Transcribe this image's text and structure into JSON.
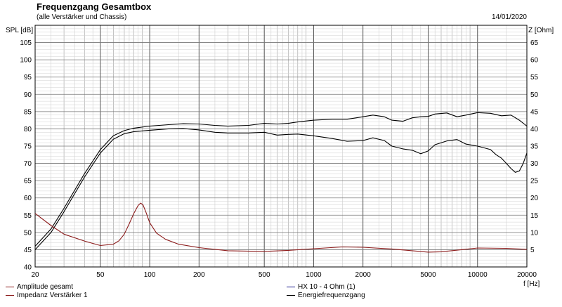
{
  "header": {
    "title": "Frequenzgang Gesamtbox",
    "subtitle": "(alle Verstärker und Chassis)",
    "date": "14/01/2020"
  },
  "legend": [
    {
      "label": "Amplitude gesamt",
      "color": "#8b1a1a"
    },
    {
      "label": "Impedanz Verstärker 1",
      "color": "#8b1a1a"
    },
    {
      "label": "HX 10 - 4 Ohm (1)",
      "color": "#1a1a8b"
    },
    {
      "label": "Energiefrequenzgang",
      "color": "#000000"
    }
  ],
  "chart_data": {
    "type": "line",
    "title": "Frequenzgang Gesamtbox",
    "subtitle": "(alle Verstärker und Chassis)",
    "xlabel": "f [Hz]",
    "ylabel": "SPL [dB]",
    "y2label": "Z [Ohm]",
    "xscale": "log",
    "xlim": [
      20,
      20000
    ],
    "ylim": [
      40,
      110
    ],
    "y2lim": [
      0,
      70
    ],
    "grid": true,
    "x_tick_labels": [
      "20",
      "50",
      "100",
      "200",
      "500",
      "1000",
      "2000",
      "5000",
      "10000",
      "20000"
    ],
    "y_ticks": [
      40,
      45,
      50,
      55,
      60,
      65,
      70,
      75,
      80,
      85,
      90,
      95,
      100,
      105
    ],
    "y2_ticks": [
      5,
      10,
      15,
      20,
      25,
      30,
      35,
      40,
      45,
      50,
      55,
      60,
      65
    ],
    "series": [
      {
        "name": "Energiefrequenzgang",
        "axis": "left",
        "color": "#000000",
        "x": [
          20,
          25,
          30,
          40,
          50,
          60,
          70,
          80,
          100,
          130,
          160,
          200,
          250,
          300,
          400,
          500,
          600,
          700,
          800,
          1000,
          1300,
          1600,
          2000,
          2300,
          2700,
          3000,
          3500,
          4000,
          4500,
          5000,
          5500,
          6500,
          7500,
          8500,
          10000,
          12000,
          14000,
          16000,
          18000,
          20000
        ],
        "y": [
          46,
          51,
          57,
          67,
          74,
          78,
          79.5,
          80.2,
          80.8,
          81.2,
          81.5,
          81.4,
          81,
          80.8,
          81,
          81.6,
          81.4,
          81.6,
          82,
          82.5,
          82.8,
          82.8,
          83.5,
          84,
          83.5,
          82.5,
          82.2,
          83.2,
          83.5,
          83.6,
          84.3,
          84.6,
          83.5,
          84,
          84.7,
          84.5,
          83.8,
          84,
          82.5,
          80.8
        ]
      },
      {
        "name": "Amplitude gesamt",
        "axis": "left",
        "color": "#000000",
        "x": [
          20,
          25,
          30,
          40,
          50,
          60,
          70,
          80,
          100,
          130,
          160,
          200,
          250,
          300,
          400,
          500,
          600,
          700,
          800,
          1000,
          1300,
          1600,
          2000,
          2300,
          2700,
          3000,
          3500,
          4000,
          4500,
          5000,
          5500,
          6500,
          7500,
          8500,
          10000,
          12000,
          13000,
          14000,
          15000,
          16000,
          17000,
          18000,
          19000,
          20000
        ],
        "y": [
          45,
          50,
          56,
          66,
          73,
          77,
          78.6,
          79.2,
          79.6,
          80,
          80.1,
          79.7,
          79,
          78.8,
          78.8,
          79,
          78.2,
          78.4,
          78.5,
          78,
          77.2,
          76.4,
          76.6,
          77.4,
          76.6,
          75,
          74.2,
          73.8,
          72.8,
          73.6,
          75.4,
          76.5,
          76.9,
          75.6,
          75,
          74,
          72.5,
          71.5,
          70,
          68.5,
          67.4,
          67.8,
          70,
          73
        ]
      },
      {
        "name": "Impedanz Verstärker 1",
        "axis": "right",
        "color": "#8b1a1a",
        "x": [
          20,
          25,
          30,
          40,
          50,
          60,
          65,
          70,
          75,
          80,
          85,
          88,
          91,
          95,
          100,
          110,
          125,
          150,
          200,
          300,
          500,
          700,
          1000,
          1500,
          2000,
          3000,
          4000,
          5000,
          6000,
          8000,
          10000,
          15000,
          20000
        ],
        "y": [
          15.5,
          12,
          9.5,
          7.5,
          6.2,
          6.6,
          7.6,
          9.5,
          12.5,
          15.5,
          17.8,
          18.5,
          18,
          15.8,
          12.8,
          9.8,
          8,
          6.6,
          5.6,
          4.7,
          4.5,
          4.8,
          5.3,
          5.8,
          5.7,
          5.2,
          4.7,
          4.3,
          4.4,
          5,
          5.5,
          5.4,
          5.1
        ]
      }
    ]
  }
}
